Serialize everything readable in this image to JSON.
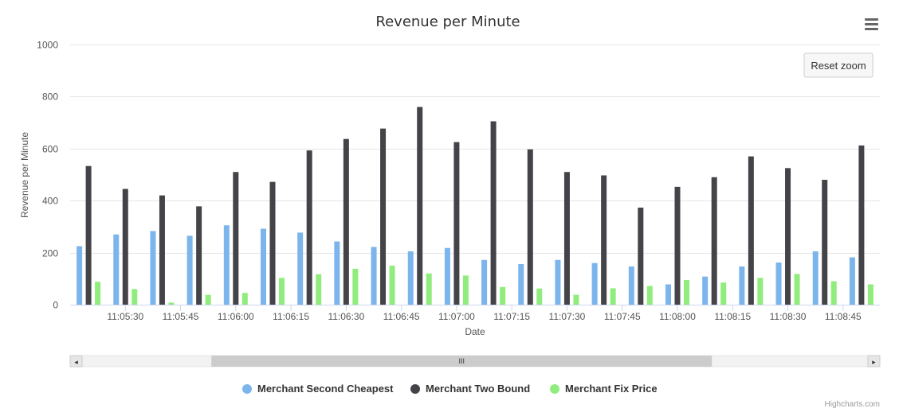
{
  "chart_data": {
    "type": "bar",
    "title": "Revenue per Minute",
    "xlabel": "Date",
    "ylabel": "Revenue per Minute",
    "ylim": [
      0,
      1000
    ],
    "yticks": [
      0,
      200,
      400,
      600,
      800,
      1000
    ],
    "grid": true,
    "legend_position": "bottom-center",
    "categories_count": 22,
    "tick_labels": [
      {
        "index": 1.5,
        "label": "11:05:30"
      },
      {
        "index": 3,
        "label": "11:05:45"
      },
      {
        "index": 4.5,
        "label": "11:06:00"
      },
      {
        "index": 6,
        "label": "11:06:15"
      },
      {
        "index": 7.5,
        "label": "11:06:30"
      },
      {
        "index": 9,
        "label": "11:06:45"
      },
      {
        "index": 10.5,
        "label": "11:07:00"
      },
      {
        "index": 12,
        "label": "11:07:15"
      },
      {
        "index": 13.5,
        "label": "11:07:30"
      },
      {
        "index": 15,
        "label": "11:07:45"
      },
      {
        "index": 16.5,
        "label": "11:08:00"
      },
      {
        "index": 18,
        "label": "11:08:15"
      },
      {
        "index": 19.5,
        "label": "11:08:30"
      },
      {
        "index": 21,
        "label": "11:08:45"
      }
    ],
    "series": [
      {
        "name": "Merchant Second Cheapest",
        "color": "#7cb5ec",
        "values": [
          225,
          270,
          283,
          265,
          305,
          292,
          277,
          243,
          222,
          205,
          218,
          172,
          156,
          172,
          160,
          147,
          78,
          108,
          147,
          162,
          205,
          182
        ]
      },
      {
        "name": "Merchant Two Bound",
        "color": "#434348",
        "values": [
          533,
          445,
          420,
          378,
          510,
          472,
          593,
          637,
          677,
          760,
          625,
          705,
          597,
          510,
          497,
          373,
          453,
          490,
          570,
          525,
          480,
          612
        ]
      },
      {
        "name": "Merchant Fix Price",
        "color": "#90ed7d",
        "values": [
          88,
          60,
          8,
          38,
          45,
          103,
          117,
          138,
          150,
          120,
          112,
          68,
          62,
          38,
          63,
          72,
          95,
          85,
          103,
          118,
          90,
          78
        ]
      }
    ]
  },
  "ui": {
    "reset_zoom_label": "Reset zoom",
    "credits": "Highcharts.com",
    "menu_icon": "hamburger-menu-icon",
    "scrollbar_grip": "III",
    "scroll_left_arrow": "◂",
    "scroll_right_arrow": "▸",
    "scroll_position": 0.4
  }
}
